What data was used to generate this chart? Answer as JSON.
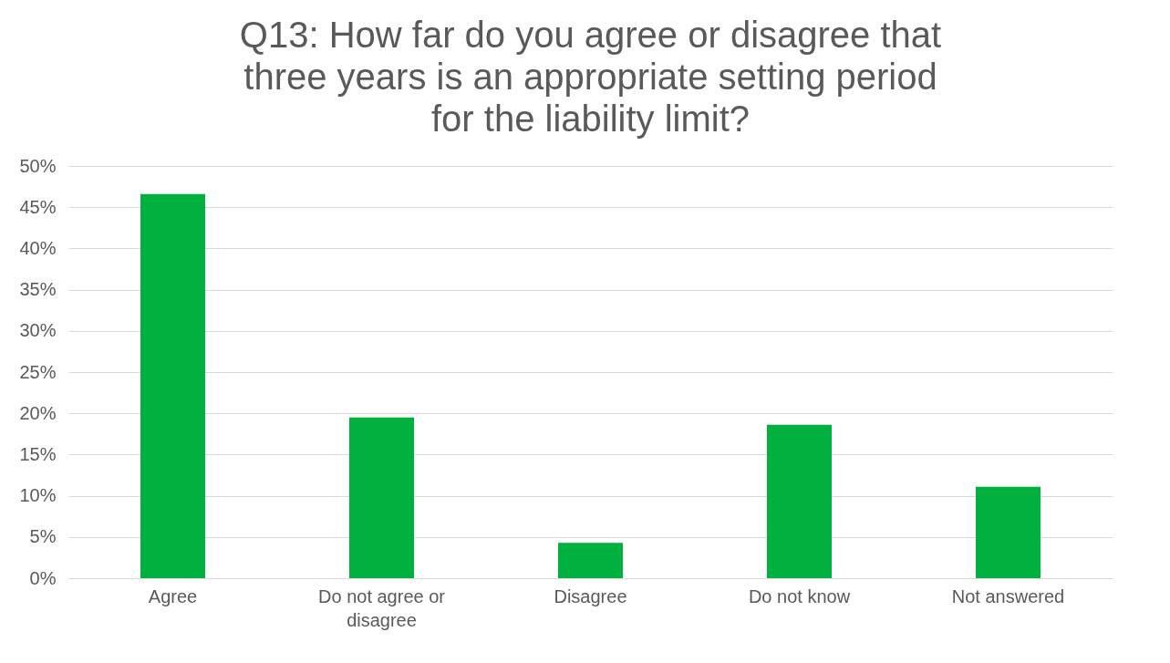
{
  "chart_data": {
    "type": "bar",
    "title": "Q13: How far do you agree or disagree that three years is an appropriate setting period for the liability limit?",
    "categories": [
      "Agree",
      "Do not agree or disagree",
      "Disagree",
      "Do not know",
      "Not answered"
    ],
    "values": [
      46.6,
      19.5,
      4.3,
      18.6,
      11.1
    ],
    "color": "#00b140",
    "ylim": [
      0,
      50
    ],
    "yticks": [
      {
        "value": 0,
        "label": "0%"
      },
      {
        "value": 5,
        "label": "5%"
      },
      {
        "value": 10,
        "label": "10%"
      },
      {
        "value": 15,
        "label": "15%"
      },
      {
        "value": 20,
        "label": "20%"
      },
      {
        "value": 25,
        "label": "25%"
      },
      {
        "value": 30,
        "label": "30%"
      },
      {
        "value": 35,
        "label": "35%"
      },
      {
        "value": 40,
        "label": "40%"
      },
      {
        "value": 45,
        "label": "45%"
      },
      {
        "value": 50,
        "label": "50%"
      }
    ],
    "grid": "y"
  }
}
